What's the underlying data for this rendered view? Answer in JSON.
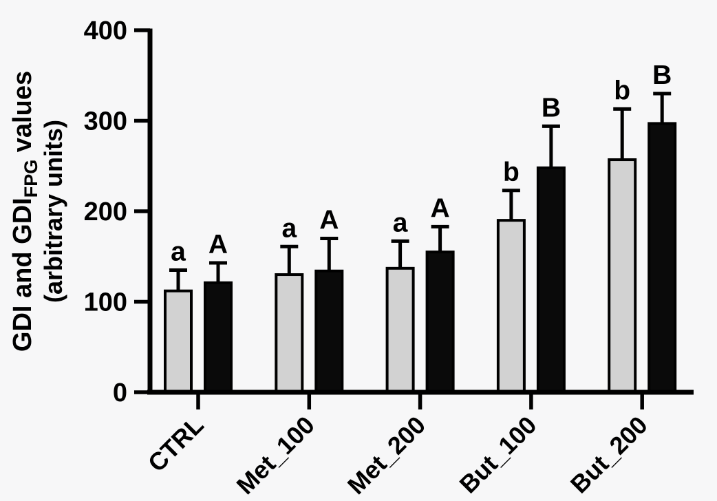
{
  "figure": {
    "background": "#f7f7f8",
    "axis_color": "#000000",
    "text_color": "#000000",
    "bar_border_color": "#000000"
  },
  "chart_data": {
    "type": "bar",
    "title": "",
    "categories": [
      "CTRL",
      "Met_100",
      "Met_200",
      "But_100",
      "But_200"
    ],
    "series": [
      {
        "name": "GDI",
        "fill": "#d2d2d2",
        "values": [
          112,
          130,
          137,
          190,
          257
        ],
        "errors_upper": [
          23,
          31,
          30,
          33,
          56
        ],
        "bar_labels": [
          "a",
          "a",
          "a",
          "b",
          "b"
        ]
      },
      {
        "name": "GDI_FPG",
        "fill": "#0a0a0a",
        "values": [
          121,
          134,
          155,
          248,
          297
        ],
        "errors_upper": [
          22,
          36,
          28,
          46,
          33
        ],
        "bar_labels": [
          "A",
          "A",
          "A",
          "B",
          "B"
        ]
      }
    ],
    "ylabel": {
      "line1_pre": "GDI and GDI",
      "line1_sub": "FPG",
      "line1_post": " values",
      "line2": "(arbitrary units)"
    },
    "xlabel": "",
    "ylim": [
      0,
      400
    ],
    "yticks": [
      0,
      100,
      200,
      300,
      400
    ],
    "grid": false,
    "legend": "none",
    "error_bar_style": "upper-only, capped"
  }
}
